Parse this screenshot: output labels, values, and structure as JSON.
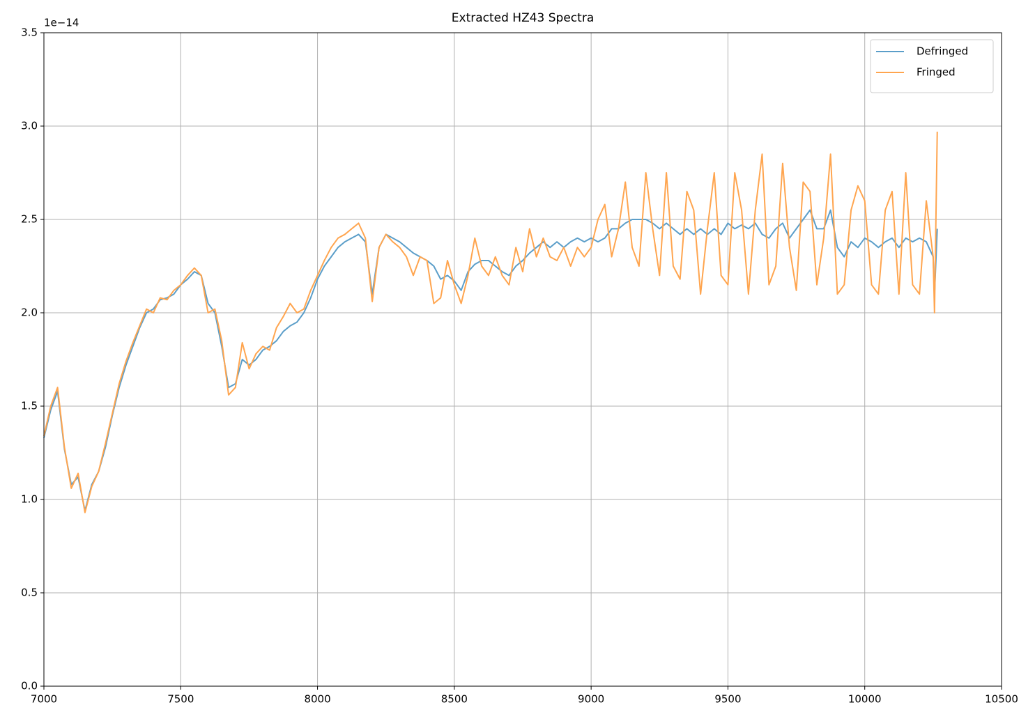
{
  "chart_data": {
    "type": "line",
    "title": "Extracted HZ43 Spectra",
    "y_offset_label": "1e−14",
    "x": [
      7000,
      7025,
      7050,
      7075,
      7100,
      7125,
      7150,
      7175,
      7200,
      7225,
      7250,
      7275,
      7300,
      7325,
      7350,
      7375,
      7400,
      7425,
      7450,
      7475,
      7500,
      7525,
      7550,
      7575,
      7600,
      7625,
      7650,
      7675,
      7700,
      7725,
      7750,
      7775,
      7800,
      7825,
      7850,
      7875,
      7900,
      7925,
      7950,
      7975,
      8000,
      8025,
      8050,
      8075,
      8100,
      8125,
      8150,
      8175,
      8200,
      8225,
      8250,
      8275,
      8300,
      8325,
      8350,
      8375,
      8400,
      8425,
      8450,
      8475,
      8500,
      8525,
      8550,
      8575,
      8600,
      8625,
      8650,
      8675,
      8700,
      8725,
      8750,
      8775,
      8800,
      8825,
      8850,
      8875,
      8900,
      8925,
      8950,
      8975,
      9000,
      9025,
      9050,
      9075,
      9100,
      9125,
      9150,
      9175,
      9200,
      9225,
      9250,
      9275,
      9300,
      9325,
      9350,
      9375,
      9400,
      9425,
      9450,
      9475,
      9500,
      9525,
      9550,
      9575,
      9600,
      9625,
      9650,
      9675,
      9700,
      9725,
      9750,
      9775,
      9800,
      9825,
      9850,
      9875,
      9900,
      9925,
      9950,
      9975,
      10000,
      10025,
      10050,
      10075,
      10100,
      10125,
      10150,
      10175,
      10200,
      10225,
      10250,
      10255,
      10265
    ],
    "series": [
      {
        "name": "Defringed",
        "color": "#5b9ec9",
        "values": [
          1.33,
          1.48,
          1.58,
          1.27,
          1.08,
          1.12,
          0.94,
          1.08,
          1.15,
          1.28,
          1.45,
          1.6,
          1.72,
          1.82,
          1.92,
          2.0,
          2.02,
          2.07,
          2.08,
          2.1,
          2.15,
          2.18,
          2.22,
          2.2,
          2.05,
          2.0,
          1.82,
          1.6,
          1.62,
          1.75,
          1.72,
          1.75,
          1.8,
          1.82,
          1.85,
          1.9,
          1.93,
          1.95,
          2.0,
          2.08,
          2.18,
          2.25,
          2.3,
          2.35,
          2.38,
          2.4,
          2.42,
          2.38,
          2.1,
          2.35,
          2.42,
          2.4,
          2.38,
          2.35,
          2.32,
          2.3,
          2.28,
          2.25,
          2.18,
          2.2,
          2.17,
          2.12,
          2.22,
          2.26,
          2.28,
          2.28,
          2.25,
          2.22,
          2.2,
          2.25,
          2.28,
          2.32,
          2.35,
          2.38,
          2.35,
          2.38,
          2.35,
          2.38,
          2.4,
          2.38,
          2.4,
          2.38,
          2.4,
          2.45,
          2.45,
          2.48,
          2.5,
          2.5,
          2.5,
          2.48,
          2.45,
          2.48,
          2.45,
          2.42,
          2.45,
          2.42,
          2.45,
          2.42,
          2.45,
          2.42,
          2.48,
          2.45,
          2.47,
          2.45,
          2.48,
          2.42,
          2.4,
          2.45,
          2.48,
          2.4,
          2.45,
          2.5,
          2.55,
          2.45,
          2.45,
          2.55,
          2.35,
          2.3,
          2.38,
          2.35,
          2.4,
          2.38,
          2.35,
          2.38,
          2.4,
          2.35,
          2.4,
          2.38,
          2.4,
          2.38,
          2.3,
          2.1,
          2.45
        ]
      },
      {
        "name": "Fringed",
        "color": "#ffa54f",
        "values": [
          1.34,
          1.5,
          1.6,
          1.28,
          1.06,
          1.14,
          0.93,
          1.07,
          1.15,
          1.3,
          1.46,
          1.62,
          1.74,
          1.84,
          1.93,
          2.02,
          2.0,
          2.08,
          2.07,
          2.12,
          2.15,
          2.2,
          2.24,
          2.2,
          2.0,
          2.02,
          1.85,
          1.56,
          1.6,
          1.84,
          1.7,
          1.78,
          1.82,
          1.8,
          1.92,
          1.98,
          2.05,
          2.0,
          2.02,
          2.12,
          2.2,
          2.28,
          2.35,
          2.4,
          2.42,
          2.45,
          2.48,
          2.4,
          2.06,
          2.35,
          2.42,
          2.38,
          2.35,
          2.3,
          2.2,
          2.3,
          2.28,
          2.05,
          2.08,
          2.28,
          2.15,
          2.05,
          2.2,
          2.4,
          2.25,
          2.2,
          2.3,
          2.2,
          2.15,
          2.35,
          2.22,
          2.45,
          2.3,
          2.4,
          2.3,
          2.28,
          2.35,
          2.25,
          2.35,
          2.3,
          2.35,
          2.5,
          2.58,
          2.3,
          2.45,
          2.7,
          2.35,
          2.25,
          2.75,
          2.45,
          2.2,
          2.75,
          2.25,
          2.18,
          2.65,
          2.55,
          2.1,
          2.45,
          2.75,
          2.2,
          2.15,
          2.75,
          2.55,
          2.1,
          2.55,
          2.85,
          2.15,
          2.25,
          2.8,
          2.35,
          2.12,
          2.7,
          2.65,
          2.15,
          2.4,
          2.85,
          2.1,
          2.15,
          2.55,
          2.68,
          2.6,
          2.15,
          2.1,
          2.55,
          2.65,
          2.1,
          2.75,
          2.15,
          2.1,
          2.6,
          2.3,
          2.0,
          2.97
        ]
      }
    ],
    "xlim": [
      7000,
      10500
    ],
    "xticks": [
      7000,
      7500,
      8000,
      8500,
      9000,
      9500,
      10000,
      10500
    ],
    "ylim": [
      0,
      3.5
    ],
    "yticks": [
      {
        "value": 0,
        "label": "0.0"
      },
      {
        "value": 0.5,
        "label": "0.5"
      },
      {
        "value": 1,
        "label": "1.0"
      },
      {
        "value": 1.5,
        "label": "1.5"
      },
      {
        "value": 2,
        "label": "2.0"
      },
      {
        "value": 2.5,
        "label": "2.5"
      },
      {
        "value": 3,
        "label": "3.0"
      },
      {
        "value": 3.5,
        "label": "3.5"
      }
    ],
    "grid": true,
    "legend": "upper-right"
  }
}
